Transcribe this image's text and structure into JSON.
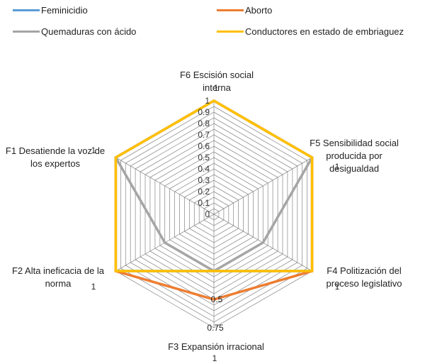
{
  "chart_data": {
    "type": "radar",
    "title": "",
    "axes": [
      {
        "name": "F6 Escisión social interna",
        "lines": [
          "F6 Escisión social",
          "interna"
        ]
      },
      {
        "name": "F5 Sensibilidad social producida por desigualdad",
        "lines": [
          "F5 Sensibilidad social",
          "producida por",
          "desigualdad"
        ]
      },
      {
        "name": "F4 Politización del proceso legislativo",
        "lines": [
          "F4 Politización del",
          "proceso legislativo"
        ]
      },
      {
        "name": "F3 Expansión irracional",
        "lines": [
          "F3 Expansión irracional"
        ]
      },
      {
        "name": "F2 Alta ineficacia de la norma",
        "lines": [
          "F2 Alta ineficacia de la",
          "norma"
        ]
      },
      {
        "name": "F1 Desatiende la voz de los expertos",
        "lines": [
          "F1 Desatiende la voz de",
          "los expertos"
        ]
      }
    ],
    "range": [
      0,
      1
    ],
    "ticks": [
      "0",
      "0.1",
      "0.2",
      "0.3",
      "0.4",
      "0.5",
      "0.6",
      "0.7",
      "0.8",
      "0.9",
      "1"
    ],
    "grid_step": 0.05,
    "legend": "top",
    "series": [
      {
        "name": "Feminicidio",
        "color": "#5B9BD5",
        "values": [
          1,
          1,
          1,
          0.5,
          1,
          1
        ]
      },
      {
        "name": "Aborto",
        "color": "#ED7D31",
        "values": [
          1,
          1,
          1,
          0.75,
          1,
          1
        ]
      },
      {
        "name": "Quemaduras con ácido",
        "color": "#A5A5A5",
        "values": [
          1,
          1,
          0.5,
          0.5,
          0.5,
          1
        ]
      },
      {
        "name": "Conductores en estado de embriaguez",
        "color": "#FFC000",
        "values": [
          1,
          1,
          1,
          0.5,
          1,
          1
        ]
      }
    ],
    "data_labels": [
      {
        "axis": 0,
        "text": "1"
      },
      {
        "axis": 1,
        "text": "1"
      },
      {
        "axis": 2,
        "text": "1"
      },
      {
        "axis": 3,
        "text": "1"
      },
      {
        "axis": 4,
        "text": "1"
      },
      {
        "axis": 5,
        "text": "1"
      },
      {
        "axis": 3,
        "text": "0.5",
        "value": 0.5
      },
      {
        "axis": 3,
        "text": "0.75",
        "value": 0.75
      }
    ]
  }
}
